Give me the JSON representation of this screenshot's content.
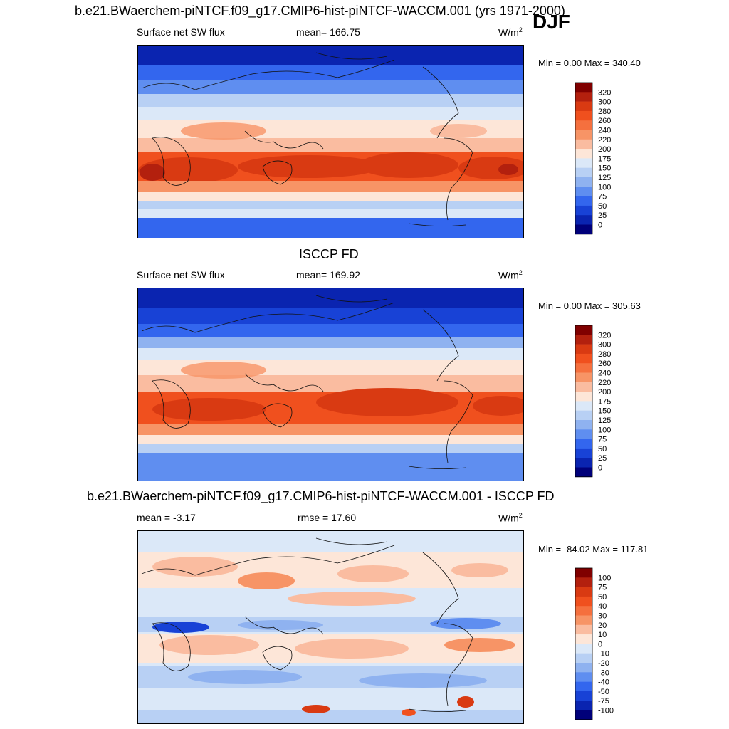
{
  "season": "DJF",
  "panels": [
    {
      "id": "model",
      "title": "b.e21.BWaerchem-piNTCF.f09_g17.CMIP6-hist-piNTCF-WACCM.001 (yrs 1971-2000)",
      "left_label": "Surface net SW flux",
      "center_label": "mean= 166.75",
      "units": "W/m",
      "units_sup": "2",
      "minmax": "Min =   0.00 Max = 340.40",
      "colorbar": {
        "levels": [
          "320",
          "300",
          "280",
          "260",
          "240",
          "220",
          "200",
          "175",
          "150",
          "125",
          "100",
          "75",
          "50",
          "25",
          "0"
        ],
        "colors": [
          "#800000",
          "#b3200e",
          "#d93a12",
          "#f0501e",
          "#f5703e",
          "#f79466",
          "#fabca0",
          "#fde6d8",
          "#dbe8f8",
          "#b8d0f4",
          "#8fb2f0",
          "#5f8ef0",
          "#3366ee",
          "#1842d6",
          "#0a24b0",
          "#00007a"
        ]
      }
    },
    {
      "id": "obs",
      "title": "ISCCP FD",
      "left_label": "Surface net SW flux",
      "center_label": "mean= 169.92",
      "units": "W/m",
      "units_sup": "2",
      "minmax": "Min =   0.00 Max = 305.63",
      "colorbar": {
        "levels": [
          "320",
          "300",
          "280",
          "260",
          "240",
          "220",
          "200",
          "175",
          "150",
          "125",
          "100",
          "75",
          "50",
          "25",
          "0"
        ],
        "colors": [
          "#800000",
          "#b3200e",
          "#d93a12",
          "#f0501e",
          "#f5703e",
          "#f79466",
          "#fabca0",
          "#fde6d8",
          "#dbe8f8",
          "#b8d0f4",
          "#8fb2f0",
          "#5f8ef0",
          "#3366ee",
          "#1842d6",
          "#0a24b0",
          "#00007a"
        ]
      }
    },
    {
      "id": "diff",
      "title": "b.e21.BWaerchem-piNTCF.f09_g17.CMIP6-hist-piNTCF-WACCM.001 - ISCCP FD",
      "left_label": "mean =  -3.17",
      "center_label": "rmse =  17.60",
      "units": "W/m",
      "units_sup": "2",
      "minmax": "Min = -84.02 Max = 117.81",
      "colorbar": {
        "levels": [
          "100",
          "75",
          "50",
          "40",
          "30",
          "20",
          "10",
          "0",
          "-10",
          "-20",
          "-30",
          "-40",
          "-50",
          "-75",
          "-100"
        ],
        "colors": [
          "#800000",
          "#b3200e",
          "#d93a12",
          "#f0501e",
          "#f5703e",
          "#f79466",
          "#fabca0",
          "#fde6d8",
          "#dbe8f8",
          "#b8d0f4",
          "#8fb2f0",
          "#5f8ef0",
          "#3366ee",
          "#1842d6",
          "#0a24b0",
          "#00007a"
        ]
      }
    }
  ]
}
